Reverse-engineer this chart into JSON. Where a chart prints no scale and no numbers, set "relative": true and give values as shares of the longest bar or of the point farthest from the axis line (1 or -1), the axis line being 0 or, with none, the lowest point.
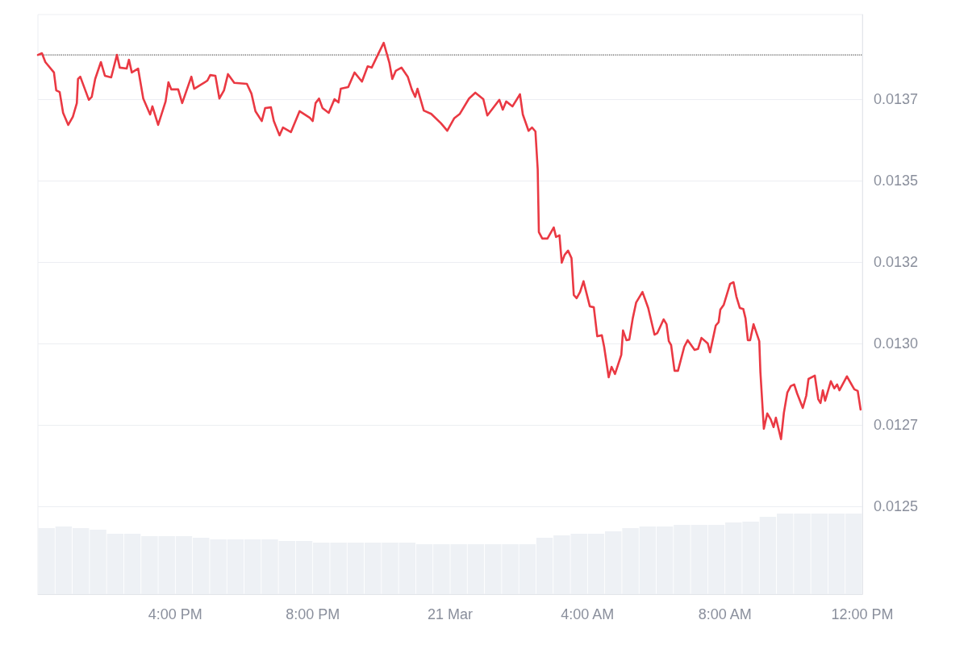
{
  "chart_data": [
    {
      "type": "line",
      "xlim": [
        "--03-20T12:00",
        "--03-21T12:00"
      ],
      "xticks": [
        {
          "value": "--03-20T16:00",
          "label": "4:00 PM"
        },
        {
          "value": "--03-20T20:00",
          "label": "8:00 PM"
        },
        {
          "value": "--03-21T00:00",
          "label": "21 Mar"
        },
        {
          "value": "--03-21T04:00",
          "label": "4:00 AM"
        },
        {
          "value": "--03-21T08:00",
          "label": "8:00 AM"
        },
        {
          "value": "--03-21T12:00",
          "label": "12:00 PM"
        }
      ],
      "ylim": [
        0.01223,
        0.01401
      ],
      "yticks": [
        0.0125,
        {
          "value": 0.01275,
          "label": "0.0127"
        },
        {
          "value": 0.013,
          "label": "0.0130"
        },
        {
          "value": 0.01325,
          "label": "0.0132"
        },
        0.0135,
        {
          "value": 0.01375,
          "label": "0.0137"
        }
      ],
      "grid": "y",
      "marker": "none",
      "line_style": "solid",
      "ref_lines": [
        {
          "axis": "y",
          "value": 0.013886,
          "color": "#555555",
          "line_style": "dotted"
        }
      ],
      "series": [
        {
          "color": "#ea3943",
          "x": [
            "--03-20T12:00",
            "--03-20T12:07",
            "--03-20T12:13",
            "--03-20T12:28",
            "--03-20T12:32",
            "--03-20T12:38",
            "--03-20T12:44",
            "--03-20T12:53",
            "--03-20T13:01",
            "--03-20T13:08",
            "--03-20T13:10",
            "--03-20T13:14",
            "--03-20T13:29",
            "--03-20T13:34",
            "--03-20T13:40",
            "--03-20T13:50",
            "--03-20T13:57",
            "--03-20T14:08",
            "--03-20T14:18",
            "--03-20T14:23",
            "--03-20T14:35",
            "--03-20T14:39",
            "--03-20T14:44",
            "--03-20T14:55",
            "--03-20T15:04",
            "--03-20T15:16",
            "--03-20T15:20",
            "--03-20T15:30",
            "--03-20T15:43",
            "--03-20T15:48",
            "--03-20T15:53",
            "--03-20T16:05",
            "--03-20T16:12",
            "--03-20T16:28",
            "--03-20T16:33",
            "--03-20T16:56",
            "--03-20T17:01",
            "--03-20T17:10",
            "--03-20T17:17",
            "--03-20T17:25",
            "--03-20T17:32",
            "--03-20T17:43",
            "--03-20T18:05",
            "--03-20T18:13",
            "--03-20T18:20",
            "--03-20T18:31",
            "--03-20T18:37",
            "--03-20T18:47",
            "--03-20T18:52",
            "--03-20T19:02",
            "--03-20T19:08",
            "--03-20T19:22",
            "--03-20T19:37",
            "--03-20T19:55",
            "--03-20T20:00",
            "--03-20T20:05",
            "--03-20T20:11",
            "--03-20T20:17",
            "--03-20T20:28",
            "--03-20T20:38",
            "--03-20T20:45",
            "--03-20T20:49",
            "--03-20T21:02",
            "--03-20T21:13",
            "--03-20T21:26",
            "--03-20T21:36",
            "--03-20T21:43",
            "--03-20T21:55",
            "--03-20T22:04",
            "--03-20T22:14",
            "--03-20T22:19",
            "--03-20T22:25",
            "--03-20T22:35",
            "--03-20T22:46",
            "--03-20T22:53",
            "--03-20T22:59",
            "--03-20T23:03",
            "--03-20T23:14",
            "--03-20T23:27",
            "--03-20T23:44",
            "--03-20T23:55",
            "--03-21T00:07",
            "--03-21T00:17",
            "--03-21T00:33",
            "--03-21T00:44",
            "--03-21T00:58",
            "--03-21T01:05",
            "--03-21T01:26",
            "--03-21T01:32",
            "--03-21T01:38",
            "--03-21T01:49",
            "--03-21T02:02",
            "--03-21T02:07",
            "--03-21T02:17",
            "--03-21T02:23",
            "--03-21T02:29",
            "--03-21T02:33",
            "--03-21T02:35",
            "--03-21T02:41",
            "--03-21T02:50",
            "--03-21T03:01",
            "--03-21T03:05",
            "--03-21T03:11",
            "--03-21T03:15",
            "--03-21T03:20",
            "--03-21T03:26",
            "--03-21T03:32",
            "--03-21T03:36",
            "--03-21T03:41",
            "--03-21T03:47",
            "--03-21T03:53",
            "--03-21T04:04",
            "--03-21T04:11",
            "--03-21T04:17",
            "--03-21T04:25",
            "--03-21T04:29",
            "--03-21T04:37",
            "--03-21T04:42",
            "--03-21T04:48",
            "--03-21T04:59",
            "--03-21T05:02",
            "--03-21T05:08",
            "--03-21T05:13",
            "--03-21T05:19",
            "--03-21T05:25",
            "--03-21T05:36",
            "--03-21T05:46",
            "--03-21T05:57",
            "--03-21T06:02",
            "--03-21T06:13",
            "--03-21T06:18",
            "--03-21T06:22",
            "--03-21T06:26",
            "--03-21T06:32",
            "--03-21T06:38",
            "--03-21T06:49",
            "--03-21T06:55",
            "--03-21T07:07",
            "--03-21T07:13",
            "--03-21T07:19",
            "--03-21T07:30",
            "--03-21T07:34",
            "--03-21T07:44",
            "--03-21T07:49",
            "--03-21T07:52",
            "--03-21T07:58",
            "--03-21T08:09",
            "--03-21T08:15",
            "--03-21T08:20",
            "--03-21T08:26",
            "--03-21T08:32",
            "--03-21T08:36",
            "--03-21T08:40",
            "--03-21T08:44",
            "--03-21T08:50",
            "--03-21T09:00",
            "--03-21T09:02",
            "--03-21T09:08",
            "--03-21T09:14",
            "--03-21T09:20",
            "--03-21T09:25",
            "--03-21T09:29",
            "--03-21T09:38",
            "--03-21T09:43",
            "--03-21T09:49",
            "--03-21T09:55",
            "--03-21T10:01",
            "--03-21T10:06",
            "--03-21T10:16",
            "--03-21T10:22",
            "--03-21T10:26",
            "--03-21T10:37",
            "--03-21T10:43",
            "--03-21T10:47",
            "--03-21T10:51",
            "--03-21T10:55",
            "--03-21T11:05",
            "--03-21T11:11",
            "--03-21T11:16",
            "--03-21T11:20",
            "--03-21T11:33",
            "--03-21T11:46",
            "--03-21T11:52",
            "--03-21T11:57"
          ],
          "values": [
            0.013886,
            0.013891,
            0.013864,
            0.013832,
            0.013777,
            0.013772,
            0.013708,
            0.013671,
            0.013696,
            0.013738,
            0.013812,
            0.013819,
            0.013748,
            0.013757,
            0.013812,
            0.013864,
            0.013822,
            0.013817,
            0.013886,
            0.013847,
            0.013844,
            0.013871,
            0.013832,
            0.013844,
            0.013752,
            0.013703,
            0.013728,
            0.013671,
            0.013743,
            0.013802,
            0.01378,
            0.01378,
            0.013738,
            0.013819,
            0.013782,
            0.013807,
            0.013824,
            0.013822,
            0.013752,
            0.013777,
            0.013827,
            0.0138,
            0.013797,
            0.013767,
            0.013713,
            0.013683,
            0.013723,
            0.013725,
            0.013683,
            0.013639,
            0.013663,
            0.013649,
            0.013713,
            0.013693,
            0.013683,
            0.013738,
            0.013752,
            0.013723,
            0.013708,
            0.01375,
            0.01374,
            0.013782,
            0.013787,
            0.013832,
            0.013804,
            0.013851,
            0.013847,
            0.013891,
            0.013923,
            0.013861,
            0.013812,
            0.013837,
            0.013847,
            0.013819,
            0.01378,
            0.013757,
            0.013782,
            0.013715,
            0.013705,
            0.013676,
            0.013653,
            0.013691,
            0.013705,
            0.013752,
            0.01377,
            0.01375,
            0.0137,
            0.013748,
            0.013718,
            0.013743,
            0.013728,
            0.013765,
            0.013703,
            0.013653,
            0.013663,
            0.013651,
            0.013535,
            0.013342,
            0.013322,
            0.013322,
            0.013356,
            0.013327,
            0.013332,
            0.013248,
            0.013272,
            0.013285,
            0.013262,
            0.013149,
            0.013139,
            0.013158,
            0.013191,
            0.013114,
            0.013111,
            0.013022,
            0.013025,
            0.01299,
            0.012896,
            0.012928,
            0.012906,
            0.012965,
            0.01304,
            0.01301,
            0.013012,
            0.013077,
            0.013126,
            0.013158,
            0.013109,
            0.013027,
            0.013032,
            0.013074,
            0.013059,
            0.013007,
            0.012995,
            0.012916,
            0.012916,
            0.01299,
            0.01301,
            0.01298,
            0.012983,
            0.013017,
            0.013,
            0.012973,
            0.013055,
            0.013065,
            0.013104,
            0.013119,
            0.013183,
            0.013188,
            0.013144,
            0.013109,
            0.013106,
            0.013077,
            0.01301,
            0.01301,
            0.013059,
            0.013007,
            0.012911,
            0.012738,
            0.012785,
            0.012767,
            0.012743,
            0.012772,
            0.012706,
            0.012787,
            0.012849,
            0.012869,
            0.012874,
            0.012847,
            0.012802,
            0.012839,
            0.012891,
            0.012901,
            0.012829,
            0.012817,
            0.012856,
            0.012824,
            0.012884,
            0.012862,
            0.012874,
            0.012856,
            0.012899,
            0.012859,
            0.012854,
            0.012797
          ]
        }
      ]
    },
    {
      "type": "bar",
      "relative": true,
      "categories": [
        null,
        null,
        null,
        null,
        null,
        null,
        null,
        null,
        null,
        null,
        null,
        null,
        null,
        null,
        null,
        null,
        null,
        null,
        null,
        null,
        null,
        null,
        null,
        null,
        null,
        null,
        null,
        null,
        null,
        null,
        null,
        null,
        null,
        null,
        null,
        null,
        null,
        null,
        null,
        null,
        null,
        null,
        null,
        null,
        null,
        null,
        null,
        null
      ],
      "series": [
        {
          "color": "#eef1f5",
          "values": [
            0.82,
            0.84,
            0.82,
            0.8,
            0.75,
            0.75,
            0.72,
            0.72,
            0.72,
            0.7,
            0.68,
            0.68,
            0.68,
            0.68,
            0.66,
            0.66,
            0.64,
            0.64,
            0.64,
            0.64,
            0.64,
            0.64,
            0.62,
            0.62,
            0.62,
            0.62,
            0.62,
            0.62,
            0.62,
            0.7,
            0.73,
            0.75,
            0.75,
            0.78,
            0.82,
            0.84,
            0.84,
            0.86,
            0.86,
            0.86,
            0.89,
            0.9,
            0.96,
            1,
            1,
            1,
            1,
            1
          ]
        }
      ]
    }
  ]
}
